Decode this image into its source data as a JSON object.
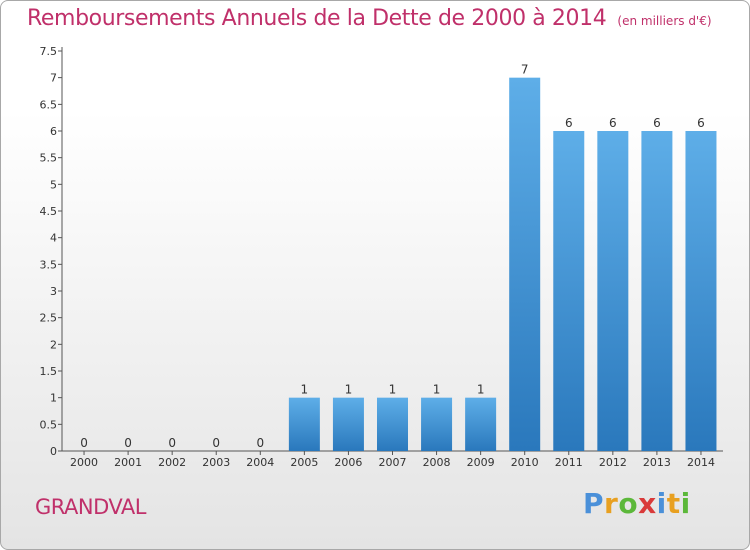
{
  "header": {
    "title": "Remboursements Annuels de la Dette de 2000 à 2014",
    "unit": "(en milliers d'€)"
  },
  "footer": {
    "commune": "GRANDVAL",
    "logo_letters": [
      {
        "ch": "P",
        "color": "#4a90d9"
      },
      {
        "ch": "r",
        "color": "#e8a020"
      },
      {
        "ch": "o",
        "color": "#5cb83a"
      },
      {
        "ch": "x",
        "color": "#d93a3a"
      },
      {
        "ch": "i",
        "color": "#4a90d9"
      },
      {
        "ch": "t",
        "color": "#e8a020"
      },
      {
        "ch": "i",
        "color": "#5cb83a"
      }
    ]
  },
  "colors": {
    "title": "#c0306a",
    "bar_top": "#5eaee8",
    "bar_bottom": "#2a78bc"
  },
  "chart_data": {
    "type": "bar",
    "title": "Remboursements Annuels de la Dette de 2000 à 2014",
    "categories": [
      "2000",
      "2001",
      "2002",
      "2003",
      "2004",
      "2005",
      "2006",
      "2007",
      "2008",
      "2009",
      "2010",
      "2011",
      "2012",
      "2013",
      "2014"
    ],
    "values": [
      0,
      0,
      0,
      0,
      0,
      1,
      1,
      1,
      1,
      1,
      7,
      6,
      6,
      6,
      6
    ],
    "ylim": [
      0,
      7.5
    ],
    "yticks": [
      "0",
      "0.5",
      "1",
      "1.5",
      "2",
      "2.5",
      "3",
      "3.5",
      "4",
      "4.5",
      "5",
      "5.5",
      "6",
      "6.5",
      "7",
      "7.5"
    ],
    "grid": false
  }
}
